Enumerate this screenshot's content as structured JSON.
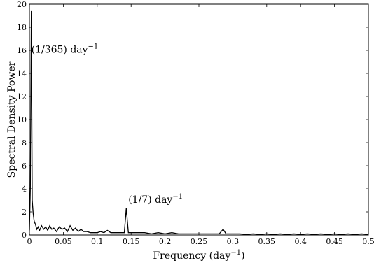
{
  "chart_data": {
    "type": "line",
    "xlabel": "Frequency (day",
    "xlabel_sup": "−1",
    "xlabel_tail": ")",
    "ylabel": "Spectral Density Power",
    "xlim": [
      0,
      0.5
    ],
    "ylim": [
      0,
      20
    ],
    "x_ticks": [
      0,
      0.05,
      0.1,
      0.15,
      0.2,
      0.25,
      0.3,
      0.35,
      0.4,
      0.45,
      0.5
    ],
    "x_tick_labels": [
      "0",
      "0.05",
      "0.1",
      "0.15",
      "0.2",
      "0.25",
      "0.3",
      "0.35",
      "0.4",
      "0.45",
      "0.5"
    ],
    "y_ticks": [
      0,
      2,
      4,
      6,
      8,
      10,
      12,
      14,
      16,
      18,
      20
    ],
    "y_tick_labels": [
      "0",
      "2",
      "4",
      "6",
      "8",
      "10",
      "12",
      "14",
      "16",
      "18",
      "20"
    ],
    "grid": false,
    "line_color": "#000000",
    "series": [
      {
        "x": [
          0,
          0.00137,
          0.00274,
          0.0041,
          0.0055,
          0.007,
          0.009,
          0.011,
          0.013,
          0.015,
          0.018,
          0.021,
          0.024,
          0.027,
          0.03,
          0.033,
          0.036,
          0.04,
          0.044,
          0.048,
          0.052,
          0.056,
          0.06,
          0.064,
          0.068,
          0.072,
          0.076,
          0.08,
          0.085,
          0.09,
          0.095,
          0.1,
          0.105,
          0.11,
          0.115,
          0.12,
          0.125,
          0.13,
          0.135,
          0.14,
          0.1429,
          0.146,
          0.15,
          0.155,
          0.16,
          0.17,
          0.18,
          0.19,
          0.2,
          0.21,
          0.22,
          0.23,
          0.24,
          0.25,
          0.26,
          0.27,
          0.28,
          0.2857,
          0.29,
          0.3,
          0.31,
          0.32,
          0.33,
          0.34,
          0.35,
          0.36,
          0.37,
          0.38,
          0.39,
          0.4,
          0.41,
          0.42,
          0.43,
          0.44,
          0.45,
          0.46,
          0.47,
          0.48,
          0.49,
          0.5
        ],
        "y": [
          0.4,
          4.0,
          19.4,
          3.0,
          1.9,
          1.2,
          0.9,
          0.5,
          0.7,
          0.4,
          0.8,
          0.5,
          0.7,
          0.4,
          0.8,
          0.5,
          0.6,
          0.3,
          0.7,
          0.5,
          0.6,
          0.3,
          0.8,
          0.4,
          0.6,
          0.3,
          0.5,
          0.3,
          0.3,
          0.2,
          0.2,
          0.2,
          0.3,
          0.2,
          0.4,
          0.2,
          0.2,
          0.2,
          0.2,
          0.2,
          2.3,
          0.2,
          0.2,
          0.2,
          0.2,
          0.2,
          0.1,
          0.2,
          0.1,
          0.2,
          0.1,
          0.1,
          0.1,
          0.1,
          0.1,
          0.1,
          0.1,
          0.5,
          0.1,
          0.1,
          0.1,
          0.05,
          0.1,
          0.05,
          0.1,
          0.05,
          0.1,
          0.05,
          0.1,
          0.05,
          0.1,
          0.05,
          0.1,
          0.05,
          0.1,
          0.05,
          0.1,
          0.05,
          0.1,
          0.05
        ]
      }
    ],
    "annotations": [
      {
        "text": "(1/365) day",
        "sup": "−1",
        "x": 0.0027,
        "y": 15.8
      },
      {
        "text": "(1/7) day",
        "sup": "−1",
        "x": 0.1459,
        "y": 2.8
      }
    ]
  }
}
